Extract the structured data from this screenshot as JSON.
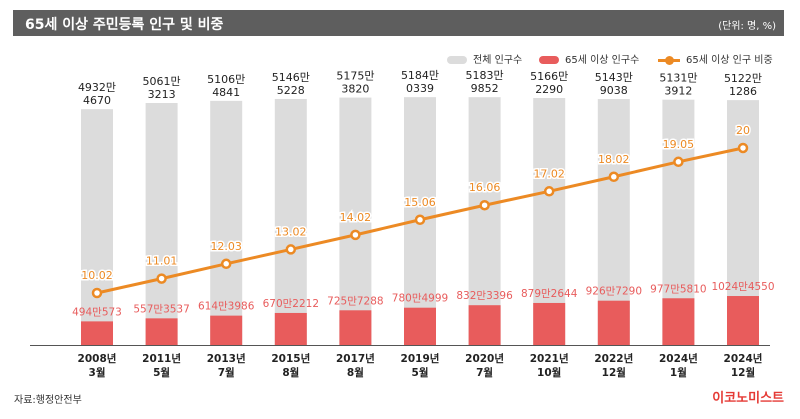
{
  "header": {
    "title": "65세 이상 주민등록 인구 및 비중",
    "unit": "(단위: 명, %)"
  },
  "legend": {
    "total": "전체 인구수",
    "elderly": "65세 이상 인구수",
    "ratio": "65세 이상 인구 비중"
  },
  "footer": {
    "source": "자료:행정안전부",
    "logo": "이코노미스트"
  },
  "colors": {
    "total": "#dcdcdc",
    "elderly": "#e85c5c",
    "ratio_line": "#ec8a24",
    "ratio_label": "#ec8a24",
    "elderly_label": "#e85c5c"
  },
  "chart_data": {
    "type": "bar",
    "categories": [
      [
        "2008년",
        "3월"
      ],
      [
        "2011년",
        "5월"
      ],
      [
        "2013년",
        "7월"
      ],
      [
        "2015년",
        "8월"
      ],
      [
        "2017년",
        "8월"
      ],
      [
        "2019년",
        "5월"
      ],
      [
        "2020년",
        "7월"
      ],
      [
        "2021년",
        "10월"
      ],
      [
        "2022년",
        "12월"
      ],
      [
        "2024년",
        "1월"
      ],
      [
        "2024년",
        "12월"
      ]
    ],
    "series": [
      {
        "name": "전체 인구수",
        "values": [
          49324670,
          50613213,
          51064841,
          51465228,
          51753820,
          51840339,
          51839852,
          51662290,
          51439038,
          51313912,
          51221286
        ],
        "labels": [
          [
            "4932만",
            "4670"
          ],
          [
            "5061만",
            "3213"
          ],
          [
            "5106만",
            "4841"
          ],
          [
            "5146만",
            "5228"
          ],
          [
            "5175만",
            "3820"
          ],
          [
            "5184만",
            "0339"
          ],
          [
            "5183만",
            "9852"
          ],
          [
            "5166만",
            "2290"
          ],
          [
            "5143만",
            "9038"
          ],
          [
            "5131만",
            "3912"
          ],
          [
            "5122만",
            "1286"
          ]
        ]
      },
      {
        "name": "65세 이상 인구수",
        "values": [
          4940573,
          5573537,
          6143986,
          6702212,
          7257288,
          7804999,
          8323396,
          8792644,
          9267290,
          9775810,
          10244550
        ],
        "labels": [
          "494만573",
          "557만3537",
          "614만3986",
          "670만2212",
          "725만7288",
          "780만4999",
          "832만3396",
          "879만2644",
          "926만7290",
          "977만5810",
          "1024만4550"
        ]
      },
      {
        "name": "65세 이상 인구 비중",
        "values": [
          10.02,
          11.01,
          12.03,
          13.02,
          14.02,
          15.06,
          16.06,
          17.02,
          18.02,
          19.05,
          20
        ],
        "labels": [
          "10.02",
          "11.01",
          "12.03",
          "13.02",
          "14.02",
          "15.06",
          "16.06",
          "17.02",
          "18.02",
          "19.05",
          "20"
        ]
      }
    ]
  }
}
